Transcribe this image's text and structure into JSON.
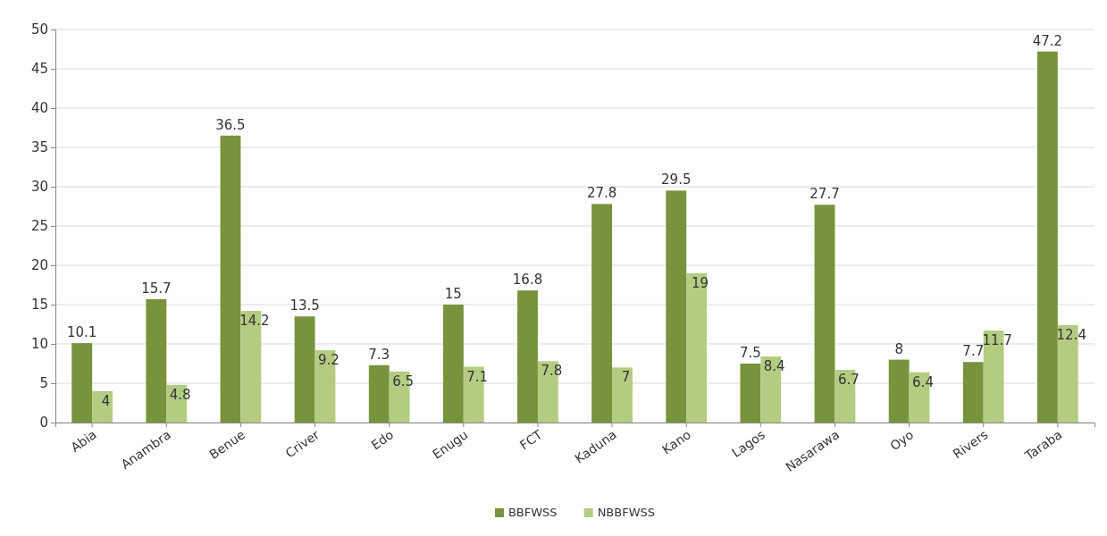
{
  "chart_data": {
    "type": "bar",
    "categories": [
      "Abia",
      "Anambra",
      "Benue",
      "Criver",
      "Edo",
      "Enugu",
      "FCT",
      "Kaduna",
      "Kano",
      "Lagos",
      "Nasarawa",
      "Oyo",
      "Rivers",
      "Taraba"
    ],
    "series": [
      {
        "name": "BBFWSS",
        "color": "#77933c",
        "values": [
          10.1,
          15.7,
          36.5,
          13.5,
          7.3,
          15,
          16.8,
          27.8,
          29.5,
          7.5,
          27.7,
          8,
          7.7,
          47.2
        ]
      },
      {
        "name": "NBBFWSS",
        "color": "#b3cc82",
        "values": [
          4,
          4.8,
          14.2,
          9.2,
          6.5,
          7.1,
          7.8,
          7,
          19,
          8.4,
          6.7,
          6.4,
          11.7,
          12.4
        ]
      }
    ],
    "ylim": [
      0,
      50
    ],
    "yticks": [
      0,
      5,
      10,
      15,
      20,
      25,
      30,
      35,
      40,
      45,
      50
    ],
    "grid": true,
    "data_labels": true,
    "legend": "bottom"
  }
}
